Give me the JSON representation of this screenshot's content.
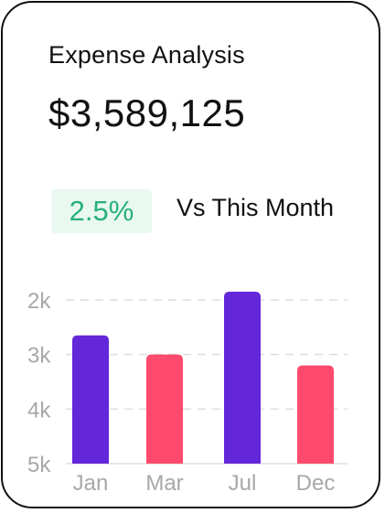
{
  "card": {
    "title": "Expense Analysis",
    "amount": "$3,589,125",
    "change_badge": "2.5%",
    "comparison_label": "Vs This Month"
  },
  "colors": {
    "purple": "#6326d9",
    "pink": "#ff4a6e",
    "badge_text": "#27b07a",
    "badge_bg": "#e9f8f1",
    "axis_text": "#a8a8a8",
    "grid": "#dddddd"
  },
  "chart_data": {
    "type": "bar",
    "categories": [
      "Jan",
      "Mar",
      "Jul",
      "Dec"
    ],
    "values": [
      2.65,
      3.0,
      1.85,
      3.2
    ],
    "bar_colors": [
      "purple",
      "pink",
      "purple",
      "pink"
    ],
    "y_ticks": [
      "2k",
      "3k",
      "4k",
      "5k"
    ],
    "grid": "dashed",
    "title": "",
    "xlabel": "",
    "ylabel": ""
  }
}
